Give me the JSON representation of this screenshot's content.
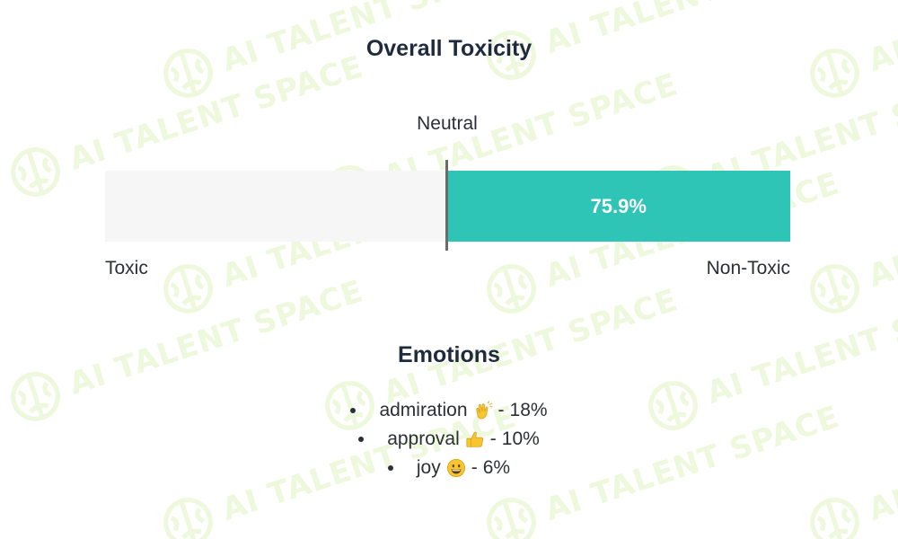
{
  "watermark": {
    "text": "AI TALENT SPACE",
    "color": "#eef8dc"
  },
  "toxicity": {
    "title": "Overall Toxicity",
    "neutral_label": "Neutral",
    "left_label": "Toxic",
    "right_label": "Non-Toxic",
    "value_label": "75.9%",
    "value": 75.9,
    "direction": "non-toxic",
    "fill_color": "#2ec4b6",
    "track_color": "#f6f6f6"
  },
  "emotions": {
    "title": "Emotions",
    "items": [
      {
        "name": "admiration",
        "icon": "clapping-hands-icon",
        "separator": "-",
        "value": "18%"
      },
      {
        "name": "approval",
        "icon": "thumbs-up-icon",
        "separator": "-",
        "value": "10%"
      },
      {
        "name": "joy",
        "icon": "grinning-face-icon",
        "separator": "-",
        "value": "6%"
      }
    ]
  }
}
